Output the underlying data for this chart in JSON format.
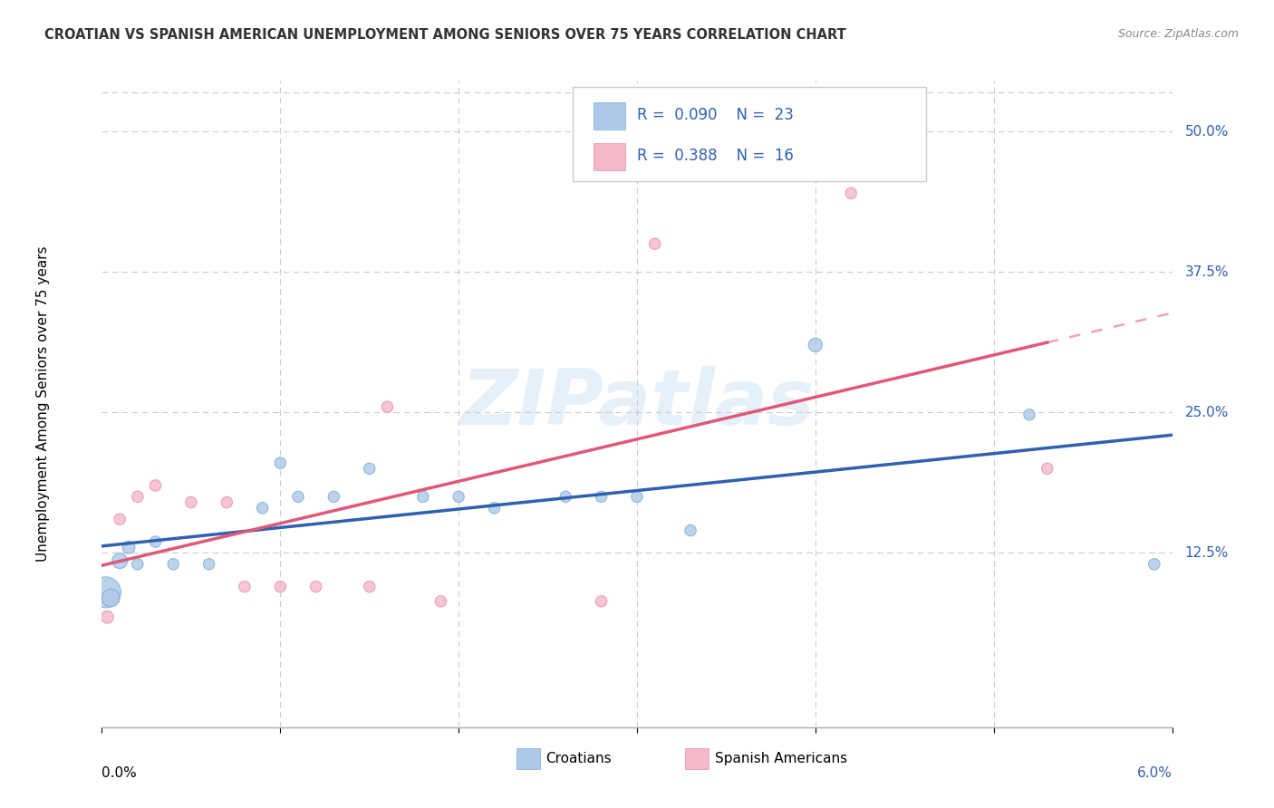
{
  "title": "CROATIAN VS SPANISH AMERICAN UNEMPLOYMENT AMONG SENIORS OVER 75 YEARS CORRELATION CHART",
  "source": "Source: ZipAtlas.com",
  "ylabel": "Unemployment Among Seniors over 75 years",
  "ytick_labels": [
    "12.5%",
    "25.0%",
    "37.5%",
    "50.0%"
  ],
  "ytick_vals": [
    0.125,
    0.25,
    0.375,
    0.5
  ],
  "xtick_left_label": "0.0%",
  "xtick_right_label": "6.0%",
  "xlim": [
    0.0,
    0.06
  ],
  "ylim": [
    -0.03,
    0.545
  ],
  "watermark": "ZIPatlas",
  "legend_line1": "R =  0.090    N =  23",
  "legend_line2": "R =  0.388    N =  16",
  "croatian_color": "#adc8e8",
  "croatian_edge_color": "#7aaed4",
  "spanish_color": "#f4b8c8",
  "spanish_edge_color": "#e890a8",
  "croatian_line_color": "#3060b0",
  "spanish_line_color": "#e05878",
  "legend_bottom_croatians": "Croatians",
  "legend_bottom_spanish": "Spanish Americans",
  "croatian_x": [
    0.0002,
    0.0005,
    0.001,
    0.0015,
    0.002,
    0.003,
    0.004,
    0.006,
    0.009,
    0.01,
    0.011,
    0.013,
    0.015,
    0.018,
    0.02,
    0.022,
    0.026,
    0.028,
    0.03,
    0.033,
    0.04,
    0.052,
    0.059
  ],
  "croatian_y": [
    0.09,
    0.085,
    0.118,
    0.13,
    0.115,
    0.135,
    0.115,
    0.115,
    0.165,
    0.205,
    0.175,
    0.175,
    0.2,
    0.175,
    0.175,
    0.165,
    0.175,
    0.175,
    0.175,
    0.145,
    0.31,
    0.248,
    0.115
  ],
  "croatian_sizes": [
    600,
    200,
    150,
    100,
    80,
    80,
    80,
    80,
    80,
    80,
    80,
    80,
    80,
    80,
    80,
    80,
    80,
    80,
    80,
    80,
    120,
    80,
    80
  ],
  "spanish_x": [
    0.0003,
    0.001,
    0.002,
    0.003,
    0.005,
    0.007,
    0.008,
    0.01,
    0.012,
    0.015,
    0.016,
    0.019,
    0.028,
    0.031,
    0.042,
    0.053
  ],
  "spanish_y": [
    0.068,
    0.155,
    0.175,
    0.185,
    0.17,
    0.17,
    0.095,
    0.095,
    0.095,
    0.095,
    0.255,
    0.082,
    0.082,
    0.4,
    0.445,
    0.2
  ],
  "spanish_sizes": [
    100,
    80,
    80,
    80,
    80,
    80,
    80,
    80,
    80,
    80,
    80,
    80,
    80,
    80,
    80,
    80
  ],
  "background_color": "#ffffff",
  "grid_color": "#cccccc"
}
